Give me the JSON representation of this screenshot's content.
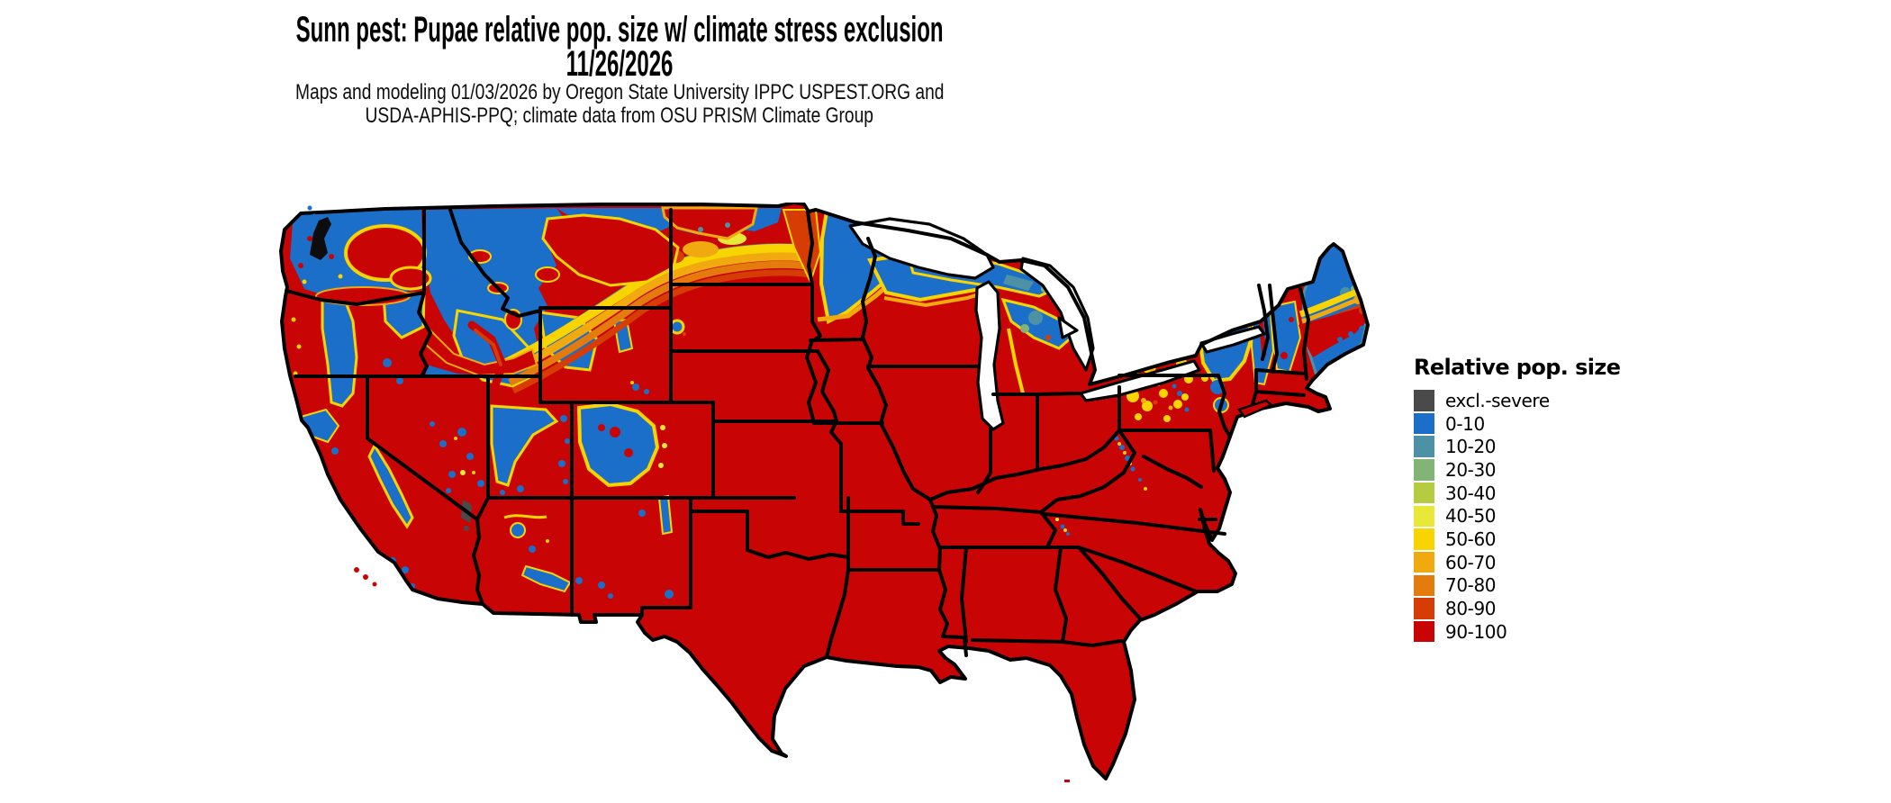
{
  "header": {
    "title_line1": "Sunn pest: Pupae relative pop. size w/ climate stress exclusion",
    "title_line2": "11/26/2026",
    "subtitle_line1": "Maps and modeling 01/03/2026 by Oregon State University IPPC USPEST.ORG and",
    "subtitle_line2": "USDA-APHIS-PPQ; climate data from OSU PRISM Climate Group"
  },
  "legend": {
    "title": "Relative pop. size",
    "items": [
      {
        "key": "excl",
        "label": "excl.-severe",
        "color": "#4a4a4a"
      },
      {
        "key": "b0",
        "label": "0-10",
        "color": "#1c6fc9"
      },
      {
        "key": "b10",
        "label": "10-20",
        "color": "#4d91a6"
      },
      {
        "key": "b20",
        "label": "20-30",
        "color": "#82b377"
      },
      {
        "key": "b30",
        "label": "30-40",
        "color": "#b6cc40"
      },
      {
        "key": "b40",
        "label": "40-50",
        "color": "#e8e838"
      },
      {
        "key": "b50",
        "label": "50-60",
        "color": "#f8d500"
      },
      {
        "key": "b60",
        "label": "60-70",
        "color": "#f0a90f"
      },
      {
        "key": "b70",
        "label": "70-80",
        "color": "#e37c0d"
      },
      {
        "key": "b80",
        "label": "80-90",
        "color": "#d63d05"
      },
      {
        "key": "b90",
        "label": "90-100",
        "color": "#c80404"
      }
    ]
  },
  "map": {
    "region": "Contiguous United States",
    "type": "raster choropleth with state borders"
  }
}
